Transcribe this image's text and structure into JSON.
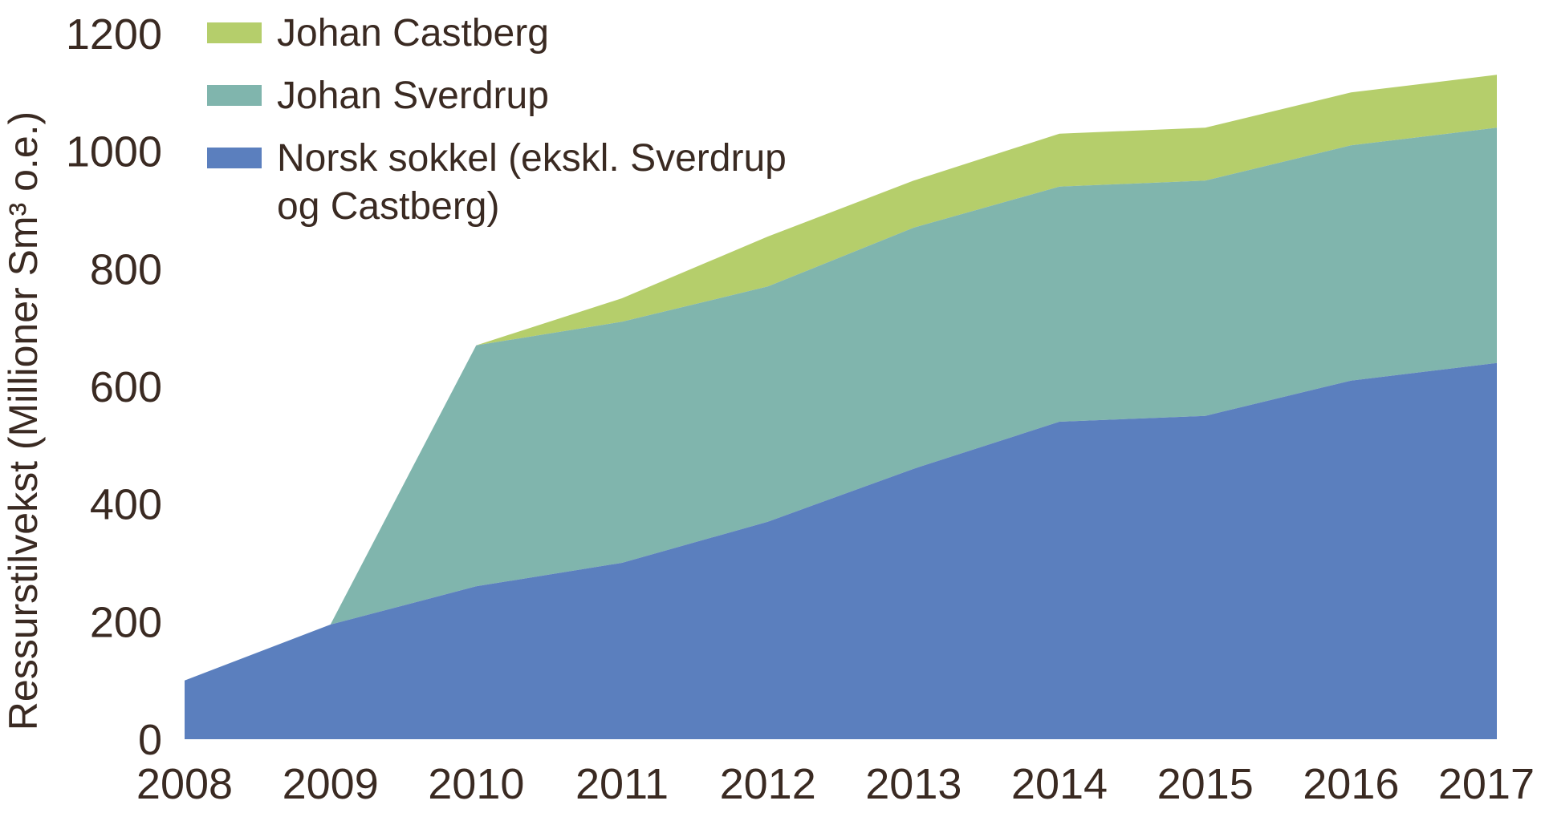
{
  "chart_data": {
    "type": "area",
    "stacked": true,
    "x": [
      "2008",
      "2009",
      "2010",
      "2011",
      "2012",
      "2013",
      "2014",
      "2015",
      "2016",
      "2017"
    ],
    "series": [
      {
        "name": "Norsk sokkel (ekskl. Sverdrup og Castberg)",
        "name_lines": [
          "Norsk sokkel (ekskl. Sverdrup",
          "og Castberg)"
        ],
        "color": "#5B7FBE",
        "values": [
          100,
          195,
          260,
          300,
          370,
          460,
          540,
          550,
          610,
          640
        ]
      },
      {
        "name": "Johan Sverdrup",
        "color": "#80B5AD",
        "values": [
          0,
          0,
          410,
          410,
          400,
          410,
          400,
          400,
          400,
          400
        ]
      },
      {
        "name": "Johan Castberg",
        "color": "#B5CE6B",
        "values": [
          0,
          0,
          0,
          40,
          85,
          80,
          90,
          90,
          90,
          90
        ]
      }
    ],
    "ylabel": "Ressurstilvekst (Millioner Sm³ o.e.)",
    "xlabel": "",
    "ylim": [
      0,
      1200
    ],
    "yticks": [
      0,
      200,
      400,
      600,
      800,
      1000,
      1200
    ],
    "legend_position": "top-left",
    "grid": false
  }
}
